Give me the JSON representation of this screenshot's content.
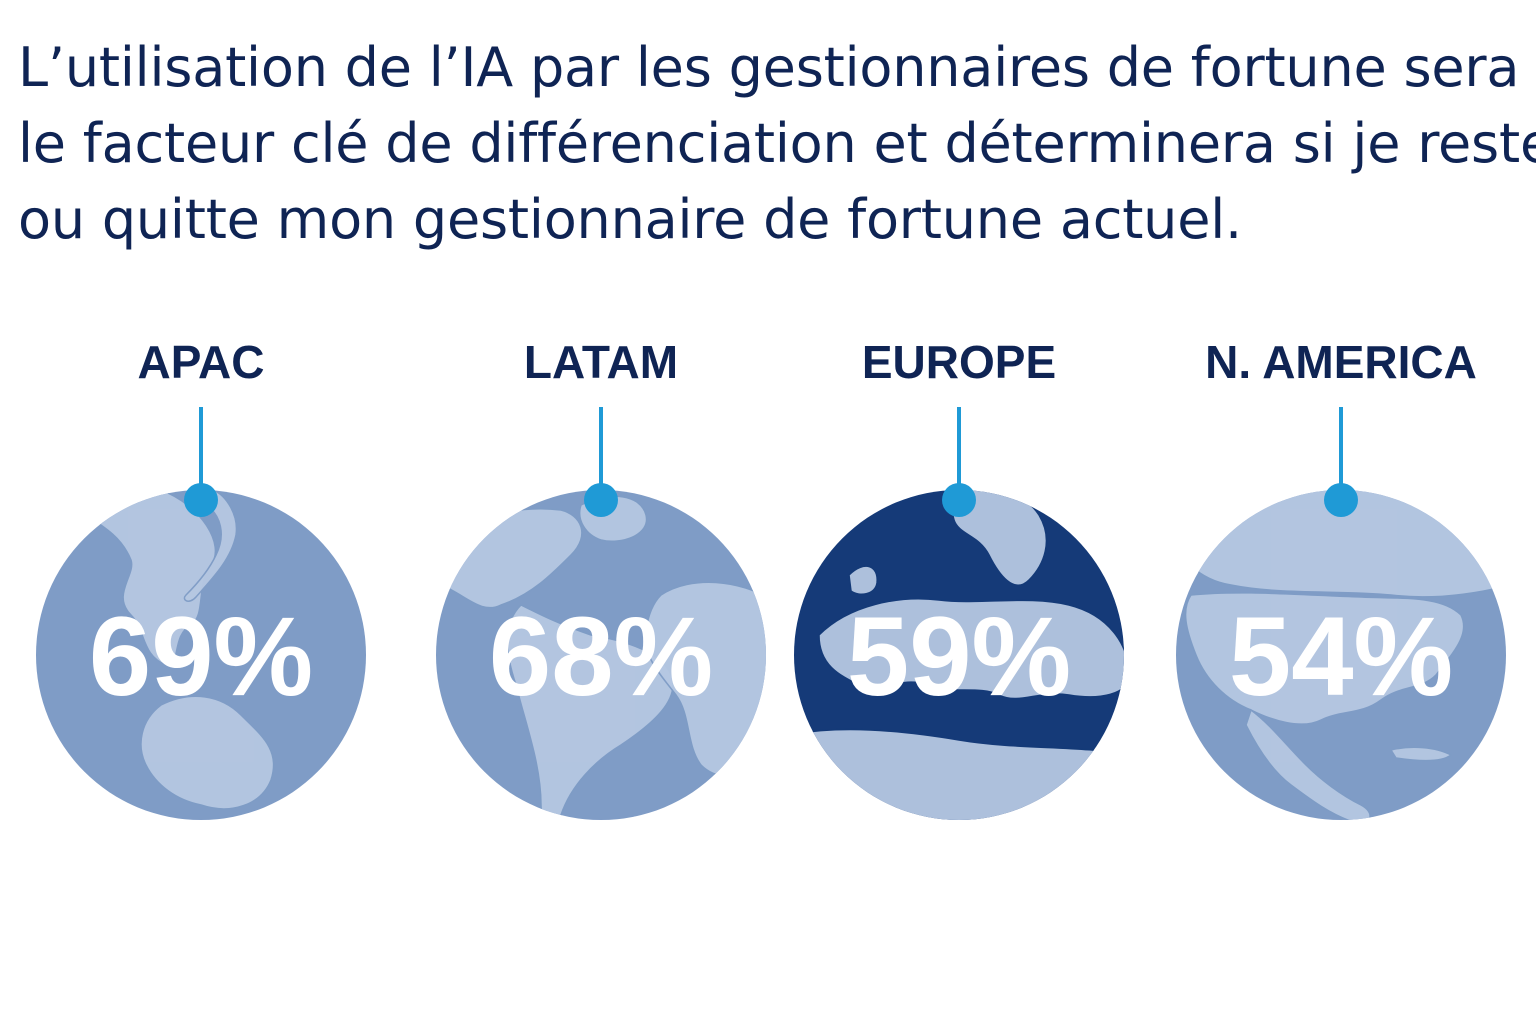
{
  "headline": {
    "line1": "L’utilisation de l’IA par les gestionnaires de fortune sera",
    "line2": "le facteur clé de différenciation et déterminera si je reste",
    "line3": "ou quitte mon gestionnaire de fortune actuel."
  },
  "colors": {
    "text_dark": "#0f2454",
    "globe_fill": "#7f9cc6",
    "land_fill": "#b6c8e2",
    "highlight_fill": "#153a78",
    "connector": "#1f9ad6",
    "percent_text": "#ffffff"
  },
  "chart_data": {
    "type": "bar",
    "title": "L’utilisation de l’IA par les gestionnaires de fortune sera le facteur clé de différenciation et déterminera si je reste ou quitte mon gestionnaire de fortune actuel.",
    "categories": [
      "APAC",
      "LATAM",
      "EUROPE",
      "N. AMERICA"
    ],
    "values": [
      69,
      68,
      59,
      54
    ],
    "value_labels": [
      "69%",
      "68%",
      "59%",
      "54%"
    ],
    "unit": "%",
    "highlighted_category": "EUROPE",
    "icons": [
      "globe-asia-pacific-icon",
      "globe-latin-america-icon",
      "globe-europe-icon",
      "globe-north-america-icon"
    ]
  }
}
